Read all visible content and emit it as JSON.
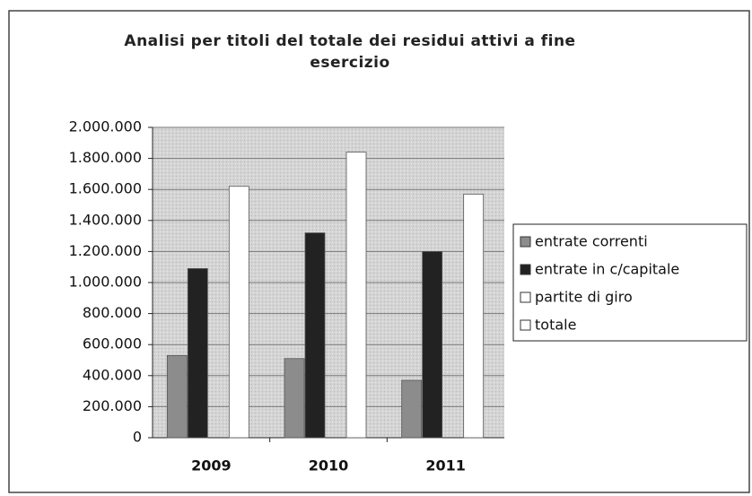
{
  "chart_data": {
    "type": "bar",
    "title": "Analisi per titoli del totale dei residui attivi a fine esercizio",
    "categories": [
      "2009",
      "2010",
      "2011"
    ],
    "series": [
      {
        "name": "entrate correnti",
        "color": "#8c8c8c",
        "values": [
          530000,
          510000,
          370000
        ]
      },
      {
        "name": "entrate in c/capitale",
        "color": "#222222",
        "values": [
          1090000,
          1320000,
          1200000
        ]
      },
      {
        "name": "partite di giro",
        "color": "#ffffff",
        "values": [
          0,
          0,
          0
        ]
      },
      {
        "name": "totale",
        "color": "#ffffff",
        "values": [
          1620000,
          1840000,
          1570000
        ]
      }
    ],
    "ylim": [
      0,
      2000000
    ],
    "yticks": [
      0,
      {
        "value": 200000,
        "label": "200.000"
      },
      {
        "value": 400000,
        "label": "400.000"
      },
      {
        "value": 600000,
        "label": "600.000"
      },
      {
        "value": 800000,
        "label": "800.000"
      },
      {
        "value": 1000000,
        "label": "1.000.000"
      },
      {
        "value": 1200000,
        "label": "1.200.000"
      },
      {
        "value": 1400000,
        "label": "1.400.000"
      },
      {
        "value": 1600000,
        "label": "1.600.000"
      },
      {
        "value": 1800000,
        "label": "1.800.000"
      },
      {
        "value": 2000000,
        "label": "2.000.000"
      }
    ],
    "grid": true,
    "legend": "right"
  }
}
